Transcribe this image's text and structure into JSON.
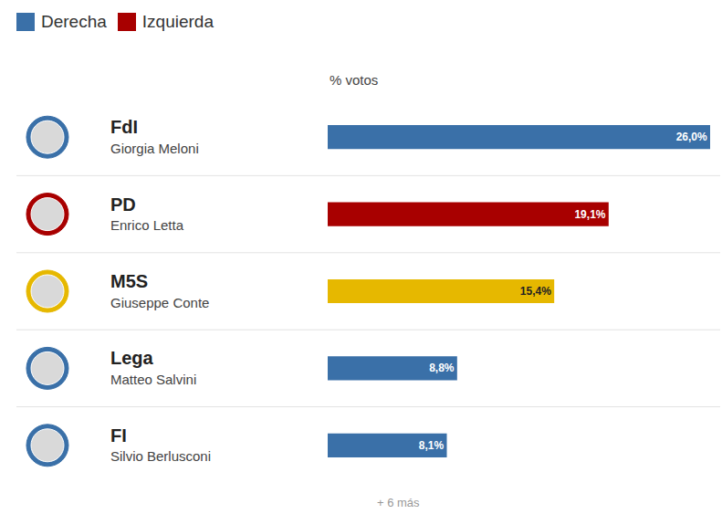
{
  "chart_data": {
    "type": "bar",
    "orientation": "horizontal",
    "xlabel": "% votos",
    "categories": [
      "FdI",
      "PD",
      "M5S",
      "Lega",
      "FI"
    ],
    "leaders": [
      "Giorgia Meloni",
      "Enrico Letta",
      "Giuseppe Conte",
      "Matteo Salvini",
      "Silvio Berlusconi"
    ],
    "values": [
      26.0,
      19.1,
      15.4,
      8.8,
      8.1
    ],
    "value_labels": [
      "26,0%",
      "19,1%",
      "15,4%",
      "8,8%",
      "8,1%"
    ],
    "colors": [
      "#3a70a8",
      "#a80000",
      "#e6b800",
      "#3a70a8",
      "#3a70a8"
    ],
    "legend": "top left",
    "legend_entries": [
      {
        "name": "Derecha",
        "color": "#3a70a8"
      },
      {
        "name": "Izquierda",
        "color": "#a80000"
      }
    ],
    "note": "+ 6 más",
    "xlim": [
      0,
      26.0
    ],
    "data_labels": true,
    "tick_labels": false,
    "grid": false
  }
}
